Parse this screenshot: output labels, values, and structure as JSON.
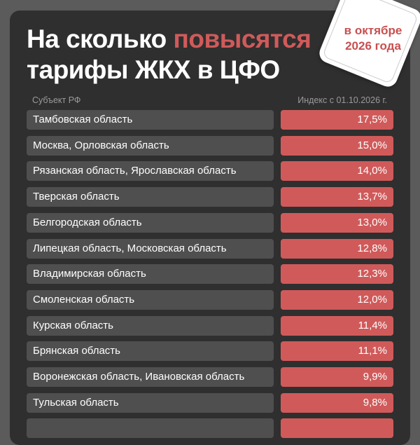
{
  "title": {
    "part1": "На сколько ",
    "highlight": "повысятся",
    "part2": "тарифы ЖКХ в ЦФО"
  },
  "badge": {
    "line1": "в октябре",
    "line2": "2026 года"
  },
  "table": {
    "col_subject": "Субъект РФ",
    "col_index": "Индекс с 01.10.2026 г.",
    "rows": [
      {
        "name": "Тамбовская область",
        "value": "17,5%"
      },
      {
        "name": "Москва, Орловская область",
        "value": "15,0%"
      },
      {
        "name": "Рязанская область, Ярославская область",
        "value": "14,0%"
      },
      {
        "name": "Тверская область",
        "value": "13,7%"
      },
      {
        "name": "Белгородская область",
        "value": "13,0%"
      },
      {
        "name": "Липецкая область, Московская область",
        "value": "12,8%"
      },
      {
        "name": "Владимирская область",
        "value": "12,3%"
      },
      {
        "name": "Смоленская область",
        "value": "12,0%"
      },
      {
        "name": "Курская область",
        "value": "11,4%"
      },
      {
        "name": "Брянская область",
        "value": "11,1%"
      },
      {
        "name": "Воронежская область, Ивановская область",
        "value": "9,9%"
      },
      {
        "name": "Тульская область",
        "value": "9,8%"
      }
    ]
  },
  "colors": {
    "accent": "#d05a5a",
    "card": "#2f2f2f",
    "row": "#4f4f4f",
    "background": "#5b5b5b"
  }
}
